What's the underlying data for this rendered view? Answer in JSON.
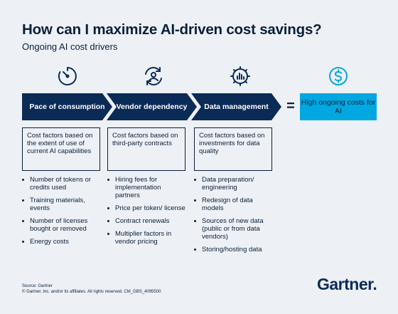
{
  "header": {
    "title": "How can I maximize AI-driven cost savings?",
    "subtitle": "Ongoing AI cost drivers"
  },
  "colors": {
    "navy": "#0b2b57",
    "accent": "#00a8e1",
    "background": "#edf1f5"
  },
  "drivers": [
    {
      "icon": "timer-icon",
      "label": "Pace of consumption",
      "description": "Cost factors based on the extent of use of current AI capabilities",
      "items": [
        "Number of tokens or credits used",
        "Training materials, events",
        "Number of licenses bought or removed",
        "Energy costs"
      ]
    },
    {
      "icon": "vendor-exchange-icon",
      "label": "Vendor dependency",
      "description": "Cost factors based on third-party contracts",
      "items": [
        "Hiring fees for implementation partners",
        "Price per token/ license",
        "Contract renewals",
        "Multiplier factors in vendor pricing"
      ]
    },
    {
      "icon": "data-chart-icon",
      "label": "Data management",
      "description": "Cost factors based on investments for data quality",
      "items": [
        "Data preparation/ engineering",
        "Redesign of data models",
        "Sources of new data (public or from data vendors)",
        "Storing/hosting data"
      ]
    }
  ],
  "equals": "=",
  "result": {
    "icon": "dollar-icon",
    "label": "High ongoing costs for AI"
  },
  "footer": {
    "source": "Source: Gartner",
    "copyright": "© Gartner, Inc. and/or its affiliates. All rights reserved. CM_GBS_4095500",
    "logo": "Gartner."
  }
}
